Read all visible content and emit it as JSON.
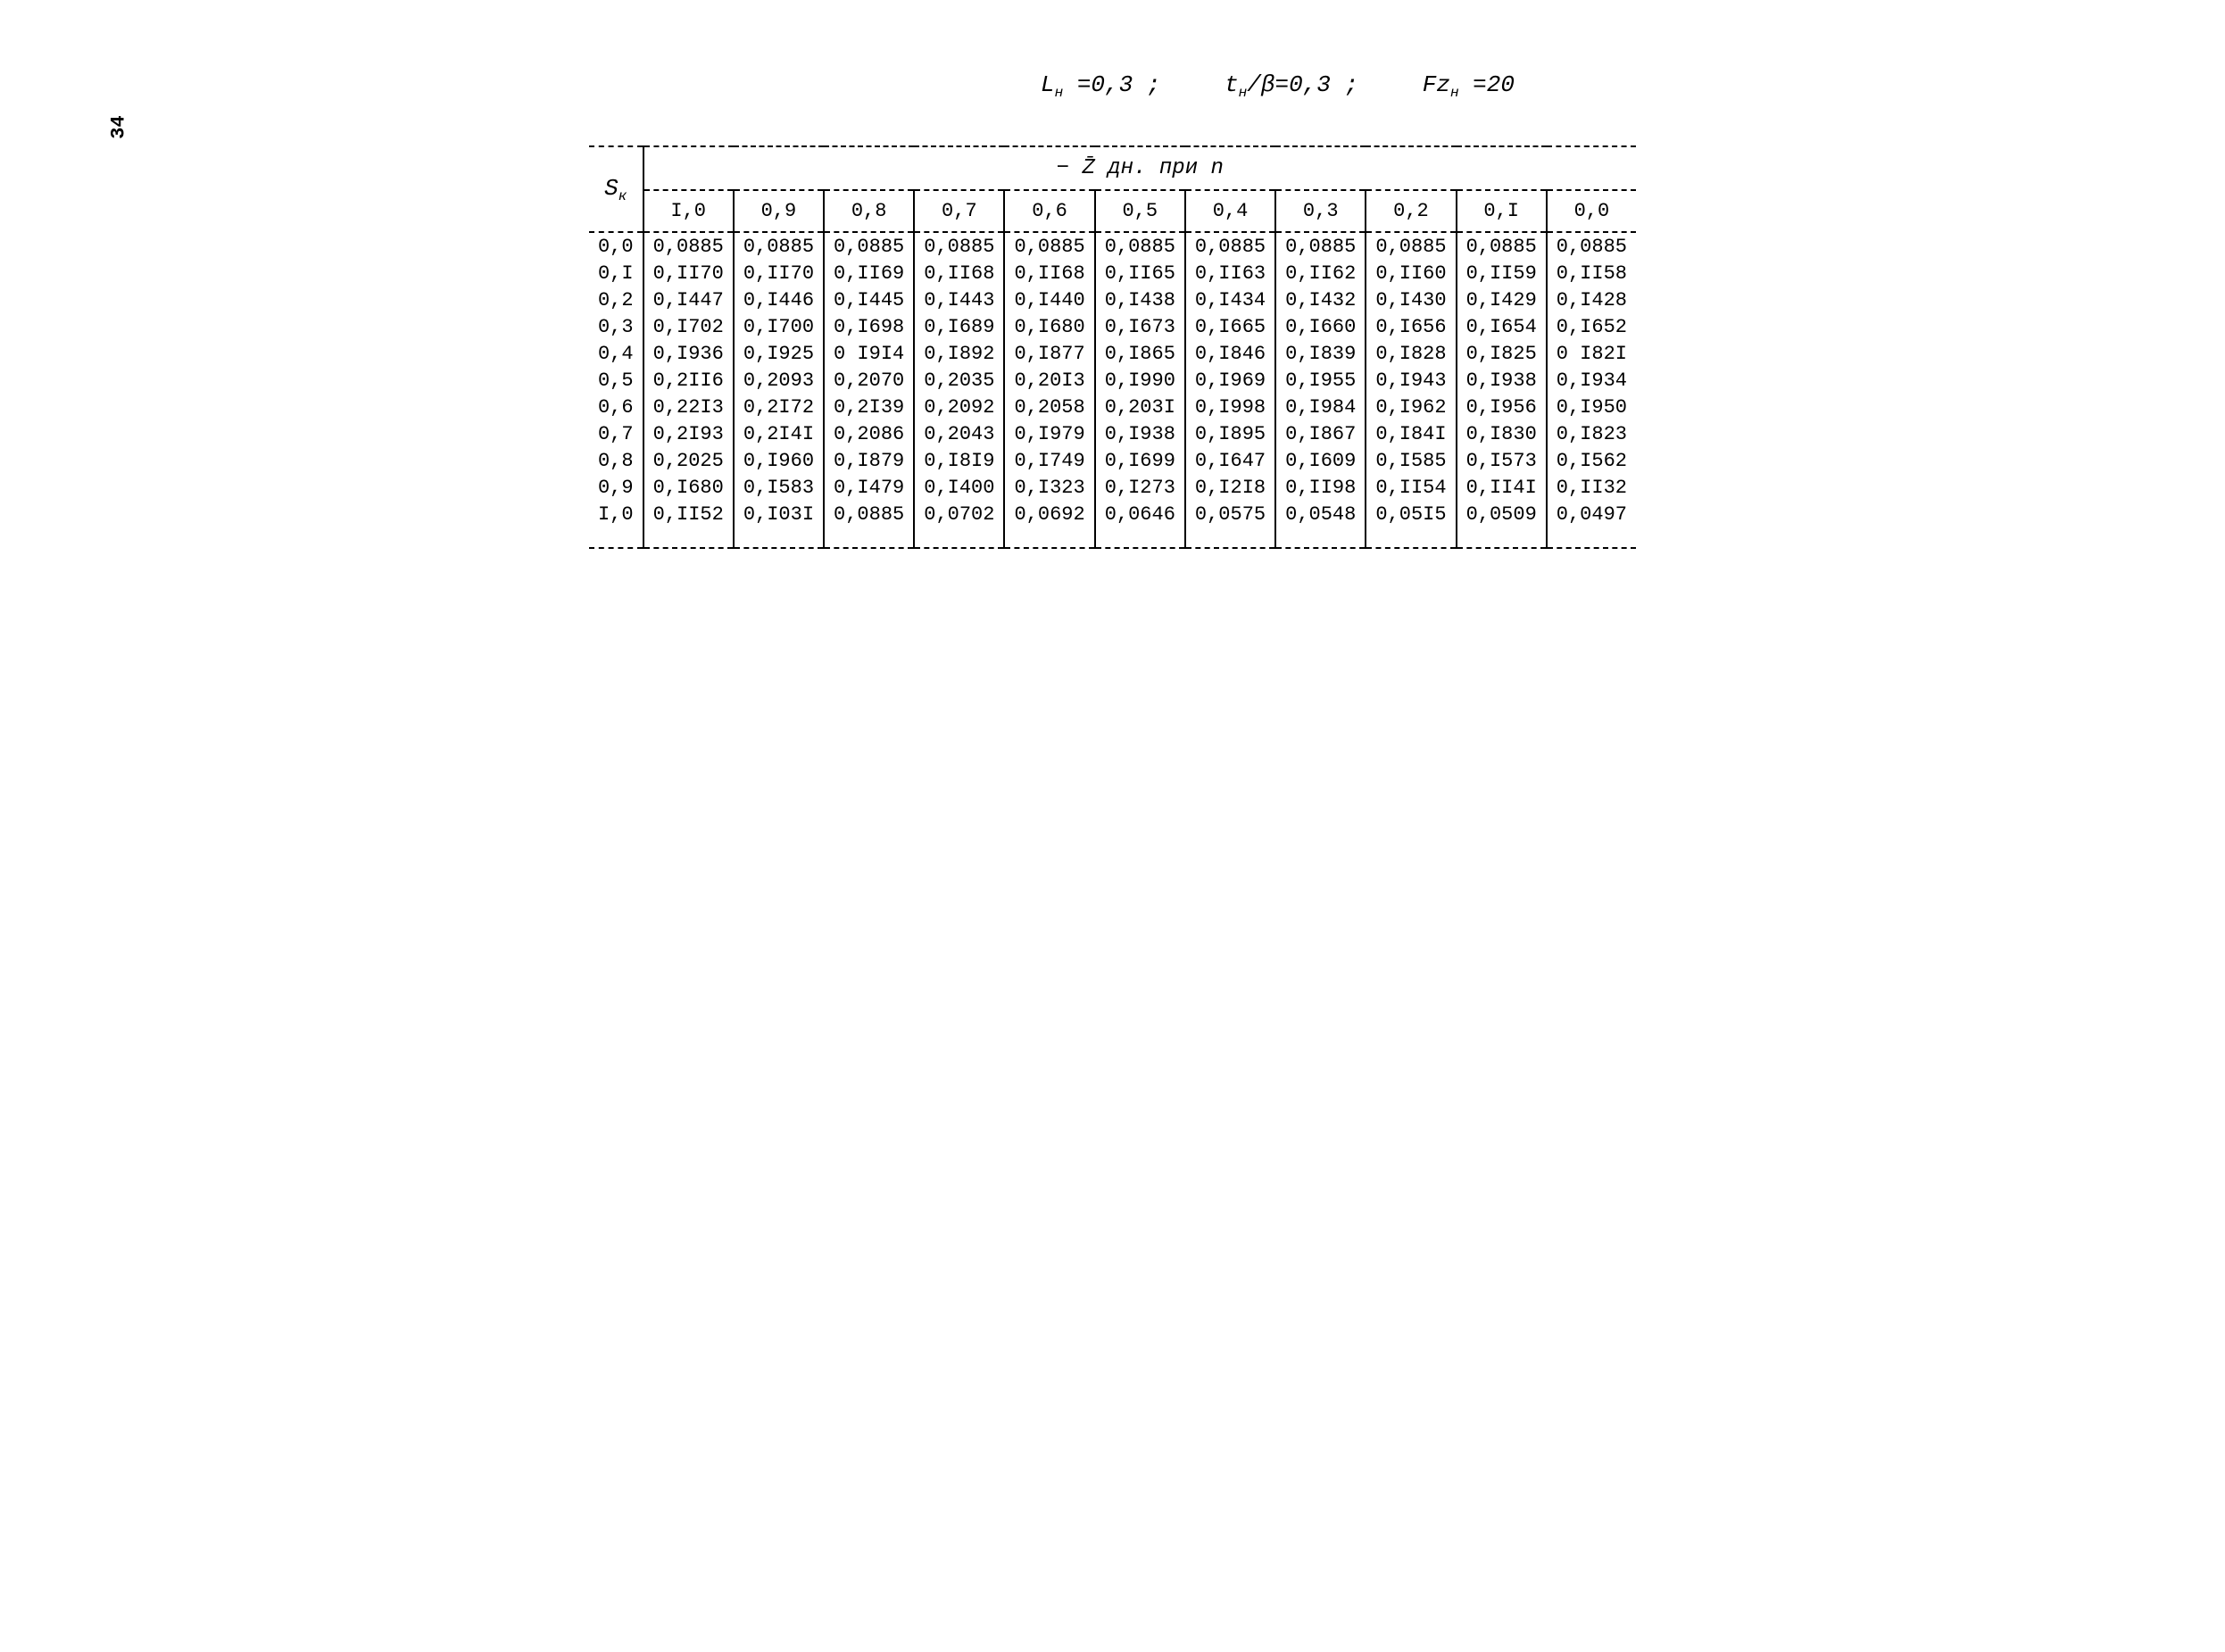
{
  "page_number": "34",
  "formula": {
    "part1_var": "L",
    "part1_sub": "н",
    "part1_eq": "=0,3 ;",
    "part2_var": "t",
    "part2_sub": "н",
    "part2_frac": "/β",
    "part2_eq": "=0,3 ;",
    "part3_var": "Fz",
    "part3_sub": "н",
    "part3_eq": "=20"
  },
  "table": {
    "sk_label": "S<sub>к</sub>",
    "spanning_label": "− Z̄ дн. при <i>n</i>",
    "columns": [
      "I,0",
      "0,9",
      "0,8",
      "0,7",
      "0,6",
      "0,5",
      "0,4",
      "0,3",
      "0,2",
      "0,I",
      "0,0"
    ],
    "row_labels": [
      "0,0",
      "0,I",
      "0,2",
      "0,3",
      "0,4",
      "0,5",
      "0,6",
      "0,7",
      "0,8",
      "0,9",
      "I,0"
    ],
    "rows": [
      [
        "0,0885",
        "0,0885",
        "0,0885",
        "0,0885",
        "0,0885",
        "0,0885",
        "0,0885",
        "0,0885",
        "0,0885",
        "0,0885",
        "0,0885"
      ],
      [
        "0,II70",
        "0,II70",
        "0,II69",
        "0,II68",
        "0,II68",
        "0,II65",
        "0,II63",
        "0,II62",
        "0,II60",
        "0,II59",
        "0,II58"
      ],
      [
        "0,I447",
        "0,I446",
        "0,I445",
        "0,I443",
        "0,I440",
        "0,I438",
        "0,I434",
        "0,I432",
        "0,I430",
        "0,I429",
        "0,I428"
      ],
      [
        "0,I702",
        "0,I700",
        "0,I698",
        "0,I689",
        "0,I680",
        "0,I673",
        "0,I665",
        "0,I660",
        "0,I656",
        "0,I654",
        "0,I652"
      ],
      [
        "0,I936",
        "0,I925",
        "0 I9I4",
        "0,I892",
        "0,I877",
        "0,I865",
        "0,I846",
        "0,I839",
        "0,I828",
        "0,I825",
        "0 I82I"
      ],
      [
        "0,2II6",
        "0,2093",
        "0,2070",
        "0,2035",
        "0,20I3",
        "0,I990",
        "0,I969",
        "0,I955",
        "0,I943",
        "0,I938",
        "0,I934"
      ],
      [
        "0,22I3",
        "0,2I72",
        "0,2I39",
        "0,2092",
        "0,2058",
        "0,203I",
        "0,I998",
        "0,I984",
        "0,I962",
        "0,I956",
        "0,I950"
      ],
      [
        "0,2I93",
        "0,2I4I",
        "0,2086",
        "0,2043",
        "0,I979",
        "0,I938",
        "0,I895",
        "0,I867",
        "0,I84I",
        "0,I830",
        "0,I823"
      ],
      [
        "0,2025",
        "0,I960",
        "0,I879",
        "0,I8I9",
        "0,I749",
        "0,I699",
        "0,I647",
        "0,I609",
        "0,I585",
        "0,I573",
        "0,I562"
      ],
      [
        "0,I680",
        "0,I583",
        "0,I479",
        "0,I400",
        "0,I323",
        "0,I273",
        "0,I2I8",
        "0,II98",
        "0,II54",
        "0,II4I",
        "0,II32"
      ],
      [
        "0,II52",
        "0,I03I",
        "0,0885",
        "0,0702",
        "0,0692",
        "0,0646",
        "0,0575",
        "0,0548",
        "0,05I5",
        "0,0509",
        "0,0497"
      ]
    ]
  }
}
